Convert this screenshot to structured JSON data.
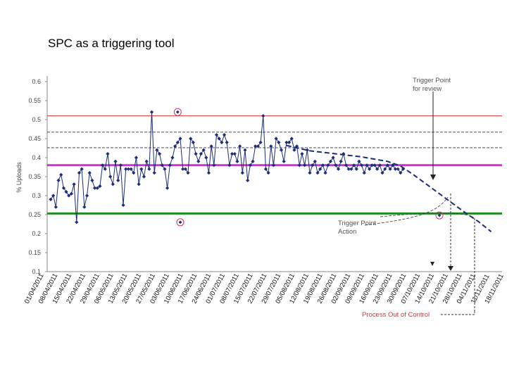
{
  "slide": {
    "title": "SPC as a triggering tool"
  },
  "chart_data": {
    "type": "line",
    "title": "SPC as a triggering tool",
    "xlabel": "",
    "ylabel": "% Uploads",
    "ylim": [
      0.1,
      0.6
    ],
    "yticks": [
      "0.1",
      "0.15",
      "0.2",
      "0.25",
      "0.3",
      "0.35",
      "0.4",
      "0.45",
      "0.5",
      "0.55",
      "0.6"
    ],
    "categories": [
      "01/04/2011",
      "08/04/2011",
      "15/04/2011",
      "22/04/2011",
      "29/04/2011",
      "06/05/2011",
      "13/05/2011",
      "20/05/2011",
      "27/05/2011",
      "03/06/2011",
      "10/06/2011",
      "17/06/2011",
      "24/06/2011",
      "01/07/2011",
      "08/07/2011",
      "15/07/2011",
      "22/07/2011",
      "29/07/2011",
      "05/08/2011",
      "12/08/2011",
      "19/08/2011",
      "26/08/2011",
      "02/09/2011",
      "09/09/2011",
      "16/09/2011",
      "23/09/2011",
      "30/09/2011",
      "07/10/2011",
      "14/10/2011",
      "21/10/2011",
      "28/10/2011",
      "04/11/2011",
      "11/11/2011",
      "18/11/2011"
    ],
    "control_lines": [
      {
        "name": "Upper Control Limit",
        "value": 0.51,
        "color": "#e03030",
        "style": "solid"
      },
      {
        "name": "Upper Warning Limit 2",
        "value": 0.467,
        "color": "#333355",
        "style": "dashed"
      },
      {
        "name": "Upper Warning Limit 1",
        "value": 0.426,
        "color": "#333355",
        "style": "dashed"
      },
      {
        "name": "Mean",
        "value": 0.38,
        "color": "#cc33cc",
        "style": "solid"
      },
      {
        "name": "Lower Control Limit",
        "value": 0.253,
        "color": "#1e8c1e",
        "style": "solid"
      }
    ],
    "series": [
      {
        "name": "% Uploads (daily)",
        "color": "#1a2d7a",
        "x": [
          0,
          0.2,
          0.4,
          0.6,
          0.8,
          1,
          1.2,
          1.4,
          1.6,
          1.8,
          2,
          2.2,
          2.4,
          2.6,
          2.8,
          3,
          3.2,
          3.4,
          3.6,
          3.8,
          4,
          4.2,
          4.4,
          4.6,
          4.8,
          5,
          5.2,
          5.4,
          5.6,
          5.8,
          6,
          6.2,
          6.4,
          6.6,
          6.8,
          7,
          7.2,
          7.4,
          7.6,
          7.8,
          8,
          8.2,
          8.4,
          8.6,
          8.8,
          9,
          9.2,
          9.4,
          9.6,
          9.8,
          10,
          10.2,
          10.4,
          10.6,
          10.8,
          11,
          11.2,
          11.4,
          11.6,
          11.8,
          12,
          12.2,
          12.4,
          12.6,
          12.8,
          13,
          13.2,
          13.4,
          13.6,
          13.8,
          14,
          14.2,
          14.4,
          14.6,
          14.8,
          15,
          15.2,
          15.4,
          15.6,
          15.8,
          16,
          16.2,
          16.4,
          16.6,
          16.8,
          17,
          17.2,
          17.4,
          17.6,
          17.8,
          18,
          18.2,
          18.4,
          18.6,
          18.8,
          19,
          19.2,
          19.4,
          19.6,
          19.8,
          20,
          20.2,
          20.4,
          20.6,
          20.8,
          21,
          21.2,
          21.4,
          21.6,
          21.8,
          22,
          22.2,
          22.4,
          22.6,
          22.8,
          23,
          23.2,
          23.4,
          23.6,
          23.8,
          24,
          24.2,
          24.4,
          24.6,
          24.8,
          25,
          25.2,
          25.4,
          25.6,
          25.8,
          26,
          26.2,
          26.4,
          26.6,
          26.8,
          27,
          27.2
        ],
        "values": [
          0.29,
          0.3,
          0.27,
          0.34,
          0.355,
          0.32,
          0.31,
          0.3,
          0.305,
          0.33,
          0.23,
          0.36,
          0.37,
          0.27,
          0.3,
          0.36,
          0.34,
          0.32,
          0.32,
          0.325,
          0.38,
          0.37,
          0.41,
          0.35,
          0.33,
          0.39,
          0.34,
          0.38,
          0.275,
          0.37,
          0.37,
          0.37,
          0.36,
          0.4,
          0.33,
          0.37,
          0.35,
          0.39,
          0.37,
          0.52,
          0.36,
          0.42,
          0.41,
          0.38,
          0.37,
          0.32,
          0.38,
          0.4,
          0.43,
          0.44,
          0.45,
          0.37,
          0.37,
          0.36,
          0.45,
          0.44,
          0.41,
          0.39,
          0.41,
          0.42,
          0.4,
          0.36,
          0.43,
          0.38,
          0.46,
          0.45,
          0.44,
          0.46,
          0.44,
          0.38,
          0.41,
          0.41,
          0.39,
          0.43,
          0.36,
          0.42,
          0.34,
          0.38,
          0.39,
          0.43,
          0.43,
          0.44,
          0.51,
          0.37,
          0.36,
          0.43,
          0.38,
          0.45,
          0.44,
          0.42,
          0.39,
          0.44,
          0.44,
          0.45,
          0.42,
          0.43,
          0.38,
          0.41,
          0.38,
          0.42,
          0.36,
          0.38,
          0.39,
          0.36,
          0.37,
          0.38,
          0.36,
          0.38,
          0.39,
          0.4,
          0.38,
          0.37,
          0.39,
          0.41,
          0.38,
          0.37,
          0.37,
          0.38,
          0.37,
          0.39,
          0.38,
          0.36,
          0.38,
          0.37,
          0.38,
          0.38,
          0.37,
          0.38,
          0.36,
          0.37,
          0.38,
          0.37,
          0.38,
          0.37,
          0.37,
          0.36,
          0.37
        ]
      },
      {
        "name": "Trend projection",
        "color": "#1a2d7a",
        "style": "dashed",
        "x": [
          18.2,
          20,
          22,
          24,
          26,
          27,
          28,
          29,
          30,
          31,
          32,
          33,
          34
        ],
        "values": [
          0.432,
          0.418,
          0.41,
          0.402,
          0.39,
          0.378,
          0.355,
          0.33,
          0.305,
          0.28,
          0.255,
          0.232,
          0.205
        ]
      }
    ],
    "highlighted_points": [
      {
        "x": 10,
        "value": 0.23
      },
      {
        "x": 9.8,
        "value": 0.52
      },
      {
        "x": 30,
        "value": 0.248
      }
    ],
    "annotations": [
      {
        "text": "Trigger Point",
        "line2": "for review"
      },
      {
        "text": "Trigger Point",
        "line2": "Action"
      },
      {
        "text": "Process Out of Control",
        "color": "#e03030"
      }
    ]
  }
}
